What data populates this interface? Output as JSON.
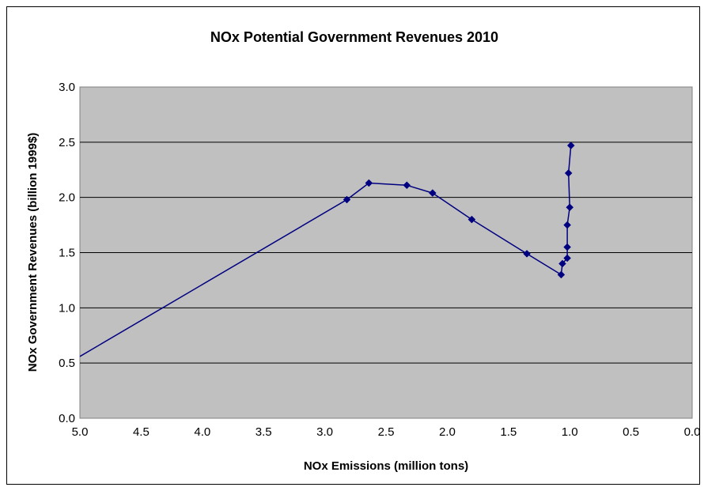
{
  "chart_data": {
    "type": "line",
    "title": "NOx Potential Government Revenues 2010",
    "xlabel": "NOx Emissions (million tons)",
    "ylabel": "NOx Government Revenues (billion 1999$)",
    "xlim": [
      5.0,
      0.0
    ],
    "ylim": [
      0.0,
      3.0
    ],
    "x_reversed": true,
    "x_ticks": [
      "5.0",
      "4.5",
      "4.0",
      "3.5",
      "3.0",
      "2.5",
      "2.0",
      "1.5",
      "1.0",
      "0.5",
      "0.0"
    ],
    "y_ticks": [
      "0.0",
      "0.5",
      "1.0",
      "1.5",
      "2.0",
      "2.5",
      "3.0"
    ],
    "grid": "horizontal",
    "plot_background": "#C0C0C0",
    "series": [
      {
        "color": "#000080",
        "marker": "diamond",
        "x": [
          2.82,
          2.64,
          2.33,
          2.12,
          1.8,
          1.35,
          1.07,
          1.06,
          1.02,
          1.02,
          1.02,
          1.0,
          1.01,
          0.99
        ],
        "y": [
          1.98,
          2.13,
          2.11,
          2.04,
          1.8,
          1.49,
          1.3,
          1.4,
          1.45,
          1.55,
          1.75,
          1.91,
          2.22,
          2.47
        ]
      }
    ],
    "extended_line": {
      "x": [
        5.0,
        2.82
      ],
      "y": [
        0.56,
        1.98
      ]
    }
  }
}
